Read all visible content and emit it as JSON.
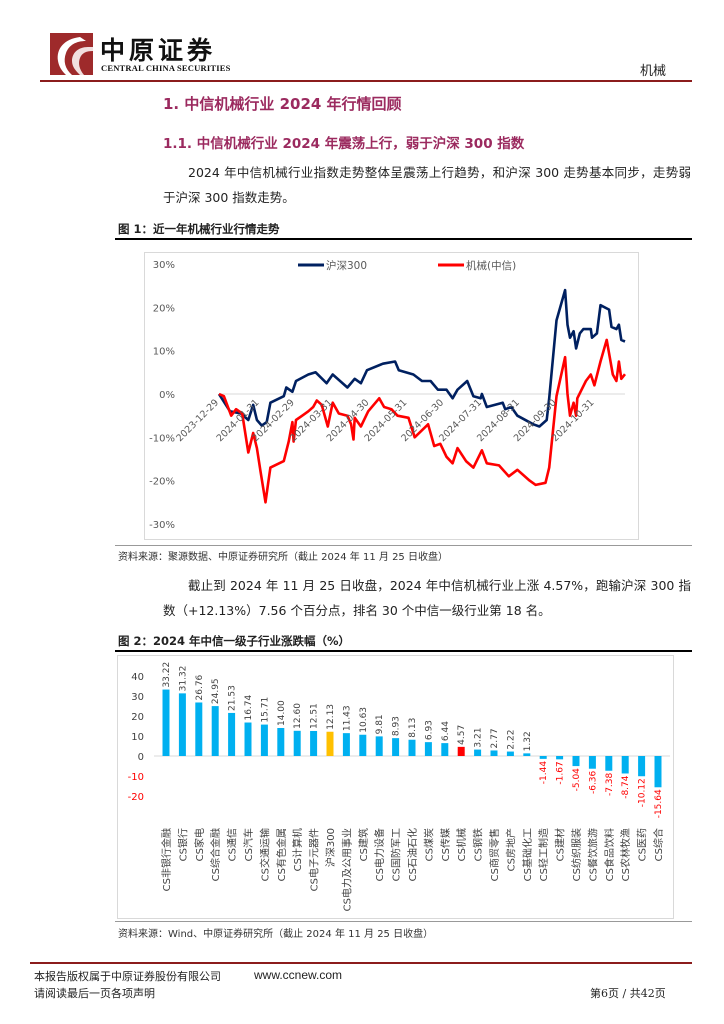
{
  "header": {
    "logo_cn": "中原证券",
    "logo_en": "CENTRAL CHINA SECURITIES",
    "sector": "机械"
  },
  "section": {
    "h1": "1. 中信机械行业 2024 年行情回顾",
    "h2": "1.1. 中信机械行业 2024 年震荡上行，弱于沪深 300 指数",
    "para1": "2024 年中信机械行业指数走势整体呈震荡上行趋势，和沪深 300 走势基本同步，走势弱于沪深 300 指数走势。",
    "para2": "截止到 2024 年 11 月 25 日收盘，2024 年中信机械行业上涨 4.57%，跑输沪深 300 指数（+12.13%）7.56 个百分点，排名 30 个中信一级行业第 18 名。"
  },
  "figure1": {
    "caption": "图 1：近一年机械行业行情走势",
    "source": "资料来源：聚源数据、中原证券研究所（截止 2024 年 11 月 25 日收盘）"
  },
  "figure2": {
    "caption": "图 2：2024 年中信一级子行业涨跌幅（%）",
    "source": "资料来源：Wind、中原证券研究所（截止 2024 年 11 月 25 日收盘）"
  },
  "chart_data": [
    {
      "type": "line",
      "title": "",
      "xlabel": "",
      "ylabel": "",
      "ylim": [
        -30,
        30
      ],
      "yticks": [
        "30%",
        "20%",
        "10%",
        "0%",
        "-10%",
        "-20%",
        "-30%"
      ],
      "ytick_values": [
        30,
        20,
        10,
        0,
        -10,
        -20,
        -30
      ],
      "xticks": [
        "2023-12-29",
        "2024-01-31",
        "2024-02-29",
        "2024-03-31",
        "2024-04-30",
        "2024-05-31",
        "2024-06-30",
        "2024-07-31",
        "2024-08-31",
        "2024-09-30",
        "2024-10-31"
      ],
      "xlim": [
        "2023-12-29",
        "2024-11-25"
      ],
      "legend": "top",
      "grid": false,
      "series": [
        {
          "name": "沪深300",
          "color": "#002060",
          "points": [
            [
              "2023-12-29",
              0
            ],
            [
              "2024-01-07",
              -4
            ],
            [
              "2024-01-16",
              -4.5
            ],
            [
              "2024-01-22",
              -6
            ],
            [
              "2024-01-26",
              -2.5
            ],
            [
              "2024-01-29",
              -6
            ],
            [
              "2024-02-02",
              -7.3
            ],
            [
              "2024-02-06",
              -6.5
            ],
            [
              "2024-02-09",
              -2
            ],
            [
              "2024-02-20",
              -0.5
            ],
            [
              "2024-02-22",
              1.5
            ],
            [
              "2024-02-27",
              0.5
            ],
            [
              "2024-03-01",
              3
            ],
            [
              "2024-03-11",
              4.5
            ],
            [
              "2024-03-17",
              5
            ],
            [
              "2024-03-26",
              2.5
            ],
            [
              "2024-03-31",
              4.5
            ],
            [
              "2024-04-12",
              1.5
            ],
            [
              "2024-04-18",
              3.5
            ],
            [
              "2024-04-23",
              2.5
            ],
            [
              "2024-04-28",
              5.5
            ],
            [
              "2024-05-11",
              7
            ],
            [
              "2024-05-21",
              7.5
            ],
            [
              "2024-05-24",
              5.5
            ],
            [
              "2024-06-05",
              4.5
            ],
            [
              "2024-06-12",
              3
            ],
            [
              "2024-06-19",
              3
            ],
            [
              "2024-06-25",
              1
            ],
            [
              "2024-07-02",
              1
            ],
            [
              "2024-07-07",
              -1
            ],
            [
              "2024-07-11",
              1
            ],
            [
              "2024-07-19",
              3
            ],
            [
              "2024-07-24",
              -0.5
            ],
            [
              "2024-07-30",
              -1
            ],
            [
              "2024-07-31",
              0
            ],
            [
              "2024-08-04",
              -3
            ],
            [
              "2024-08-17",
              -2
            ],
            [
              "2024-08-19",
              -3.5
            ],
            [
              "2024-08-24",
              -3
            ],
            [
              "2024-08-29",
              -5
            ],
            [
              "2024-09-11",
              -7
            ],
            [
              "2024-09-16",
              -7.5
            ],
            [
              "2024-09-22",
              -6
            ],
            [
              "2024-09-24",
              -1
            ],
            [
              "2024-09-30",
              17
            ],
            [
              "2024-10-07",
              24
            ],
            [
              "2024-10-09",
              16
            ],
            [
              "2024-10-11",
              13
            ],
            [
              "2024-10-14",
              14.5
            ],
            [
              "2024-10-16",
              10.5
            ],
            [
              "2024-10-19",
              14
            ],
            [
              "2024-10-22",
              15
            ],
            [
              "2024-10-28",
              15
            ],
            [
              "2024-10-29",
              13
            ],
            [
              "2024-11-02",
              14
            ],
            [
              "2024-11-05",
              20.5
            ],
            [
              "2024-11-12",
              19.5
            ],
            [
              "2024-11-14",
              15.5
            ],
            [
              "2024-11-18",
              15
            ],
            [
              "2024-11-20",
              16
            ],
            [
              "2024-11-22",
              12.5
            ],
            [
              "2024-11-25",
              12.13
            ]
          ]
        },
        {
          "name": "机械(中信)",
          "color": "#FF0000",
          "points": [
            [
              "2023-12-29",
              0
            ],
            [
              "2024-01-02",
              -0.5
            ],
            [
              "2024-01-08",
              -5
            ],
            [
              "2024-01-12",
              -3.5
            ],
            [
              "2024-01-17",
              -4.5
            ],
            [
              "2024-01-22",
              -13.5
            ],
            [
              "2024-01-26",
              -9
            ],
            [
              "2024-01-29",
              -12.5
            ],
            [
              "2024-02-01",
              -18
            ],
            [
              "2024-02-05",
              -25
            ],
            [
              "2024-02-07",
              -21
            ],
            [
              "2024-02-09",
              -17
            ],
            [
              "2024-02-20",
              -15.5
            ],
            [
              "2024-02-24",
              -11
            ],
            [
              "2024-02-27",
              -6.5
            ],
            [
              "2024-02-28",
              -11
            ],
            [
              "2024-03-01",
              -6
            ],
            [
              "2024-03-06",
              -5
            ],
            [
              "2024-03-11",
              -4
            ],
            [
              "2024-03-15",
              -3
            ],
            [
              "2024-03-18",
              -1.5
            ],
            [
              "2024-03-22",
              -2.5
            ],
            [
              "2024-03-27",
              -7.5
            ],
            [
              "2024-03-31",
              -2
            ],
            [
              "2024-04-05",
              -4.5
            ],
            [
              "2024-04-12",
              -5
            ],
            [
              "2024-04-15",
              -7
            ],
            [
              "2024-04-17",
              -10.5
            ],
            [
              "2024-04-18",
              -5.5
            ],
            [
              "2024-04-23",
              -7.5
            ],
            [
              "2024-04-29",
              -4
            ],
            [
              "2024-05-08",
              -1
            ],
            [
              "2024-05-12",
              -3
            ],
            [
              "2024-05-18",
              -3.5
            ],
            [
              "2024-05-23",
              -5
            ],
            [
              "2024-06-01",
              -5.5
            ],
            [
              "2024-06-06",
              -10
            ],
            [
              "2024-06-17",
              -7
            ],
            [
              "2024-06-22",
              -12
            ],
            [
              "2024-06-27",
              -11.5
            ],
            [
              "2024-07-02",
              -14.5
            ],
            [
              "2024-07-07",
              -16
            ],
            [
              "2024-07-11",
              -12.5
            ],
            [
              "2024-07-18",
              -15.5
            ],
            [
              "2024-07-24",
              -17
            ],
            [
              "2024-07-31",
              -13
            ],
            [
              "2024-08-04",
              -16
            ],
            [
              "2024-08-14",
              -16.5
            ],
            [
              "2024-08-22",
              -19
            ],
            [
              "2024-08-29",
              -17.5
            ],
            [
              "2024-09-08",
              -20
            ],
            [
              "2024-09-13",
              -21
            ],
            [
              "2024-09-21",
              -20.5
            ],
            [
              "2024-09-24",
              -17
            ],
            [
              "2024-09-30",
              -0.5
            ],
            [
              "2024-10-07",
              8.5
            ],
            [
              "2024-10-09",
              0
            ],
            [
              "2024-10-11",
              -5
            ],
            [
              "2024-10-14",
              -2
            ],
            [
              "2024-10-16",
              -5
            ],
            [
              "2024-10-17",
              -1
            ],
            [
              "2024-10-24",
              3
            ],
            [
              "2024-10-28",
              4.5
            ],
            [
              "2024-10-31",
              2
            ],
            [
              "2024-11-05",
              7.5
            ],
            [
              "2024-11-10",
              12.5
            ],
            [
              "2024-11-15",
              4.5
            ],
            [
              "2024-11-18",
              3
            ],
            [
              "2024-11-20",
              7.5
            ],
            [
              "2024-11-22",
              3.5
            ],
            [
              "2024-11-25",
              4.57
            ]
          ]
        }
      ]
    },
    {
      "type": "bar",
      "title": "",
      "xlabel": "",
      "ylabel": "",
      "ylim": [
        -20,
        40
      ],
      "yticks": [
        40,
        30,
        20,
        10,
        0,
        -10,
        -20
      ],
      "grid": false,
      "colors": {
        "default": "#00B0F0",
        "benchmark": "#FFC000",
        "highlight": "#FF0000",
        "negative_label": "#FF0000"
      },
      "categories": [
        "CS非银行金融",
        "CS银行",
        "CS家电",
        "CS综合金融",
        "CS通信",
        "CS汽车",
        "CS交通运输",
        "CS有色金属",
        "CS计算机",
        "CS电子元器件",
        "沪深300",
        "CS电力及公用事业",
        "CS建筑",
        "CS电力设备",
        "CS国防军工",
        "CS石油石化",
        "CS煤炭",
        "CS传媒",
        "CS机械",
        "CS钢铁",
        "CS商贸零售",
        "CS房地产",
        "CS基础化工",
        "CS轻工制造",
        "CS建材",
        "CS纺织服装",
        "CS餐饮旅游",
        "CS食品饮料",
        "CS农林牧渔",
        "CS医药",
        "CS综合"
      ],
      "values": [
        33.22,
        31.32,
        26.76,
        24.95,
        21.53,
        16.74,
        15.71,
        14.0,
        12.6,
        12.51,
        12.13,
        11.43,
        10.63,
        9.81,
        8.93,
        8.13,
        6.93,
        6.44,
        4.57,
        3.21,
        2.77,
        2.22,
        1.32,
        -1.44,
        -1.67,
        -5.04,
        -6.36,
        -7.38,
        -8.74,
        -10.12,
        -15.64
      ],
      "value_labels": [
        "33.22",
        "31.32",
        "26.76",
        "24.95",
        "21.53",
        "16.74",
        "15.71",
        "14.00",
        "12.60",
        "12.51",
        "12.13",
        "11.43",
        "10.63",
        "9.81",
        "8.93",
        "8.13",
        "6.93",
        "6.44",
        "4.57",
        "3.21",
        "2.77",
        "2.22",
        "1.32",
        "-1.44",
        "-1.67",
        "-5.04",
        "-6.36",
        "-7.38",
        "-8.74",
        "-10.12",
        "-15.64"
      ],
      "benchmark": "沪深300",
      "highlight": "CS机械"
    }
  ],
  "footer": {
    "copyright": "本报告版权属于中原证券股份有限公司",
    "website": "www.ccnew.com",
    "disclaimer": "请阅读最后一页各项声明",
    "page": "第6页 / 共42页"
  }
}
